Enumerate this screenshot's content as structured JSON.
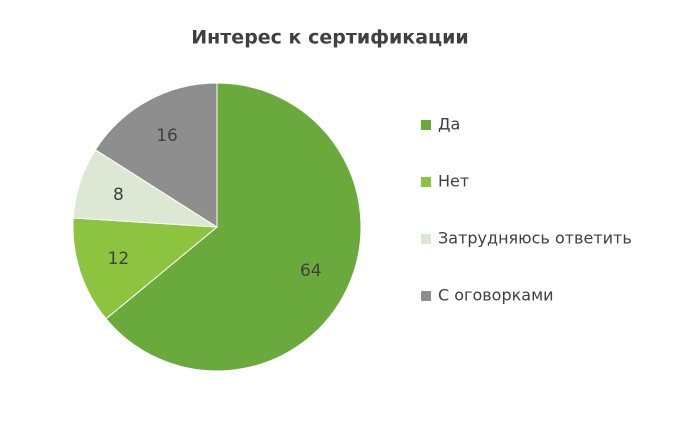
{
  "chart_data": {
    "type": "pie",
    "title": "Интерес к сертификации",
    "categories": [
      "Да",
      "Нет",
      "Затрудняюсь ответить",
      "С оговорками"
    ],
    "values": [
      64,
      12,
      8,
      16
    ],
    "colors": [
      "#6aaa3c",
      "#8cc43f",
      "#dce8d3",
      "#8e8e8e"
    ],
    "legend": "right"
  }
}
